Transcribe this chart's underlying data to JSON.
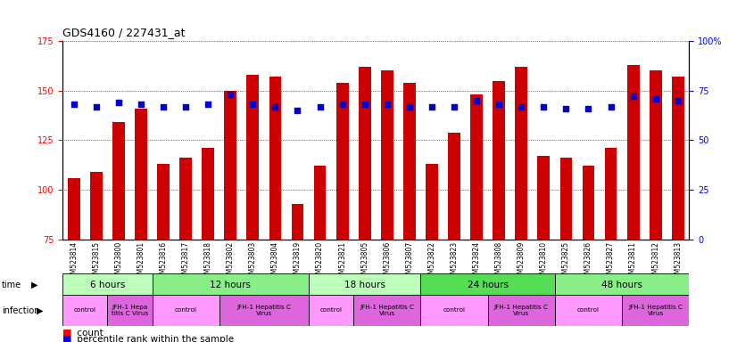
{
  "title": "GDS4160 / 227431_at",
  "samples": [
    "GSM523814",
    "GSM523815",
    "GSM523800",
    "GSM523801",
    "GSM523816",
    "GSM523817",
    "GSM523818",
    "GSM523802",
    "GSM523803",
    "GSM523804",
    "GSM523819",
    "GSM523820",
    "GSM523821",
    "GSM523805",
    "GSM523806",
    "GSM523807",
    "GSM523822",
    "GSM523823",
    "GSM523824",
    "GSM523808",
    "GSM523809",
    "GSM523810",
    "GSM523825",
    "GSM523826",
    "GSM523827",
    "GSM523811",
    "GSM523812",
    "GSM523813"
  ],
  "counts": [
    106,
    109,
    134,
    141,
    113,
    116,
    121,
    150,
    158,
    157,
    93,
    112,
    154,
    162,
    160,
    154,
    113,
    129,
    148,
    155,
    162,
    117,
    116,
    112,
    121,
    163,
    160,
    157
  ],
  "percentiles": [
    68,
    67,
    69,
    68,
    67,
    67,
    68,
    73,
    68,
    67,
    65,
    67,
    68,
    68,
    68,
    67,
    67,
    67,
    70,
    68,
    67,
    67,
    66,
    66,
    67,
    72,
    71,
    70
  ],
  "bar_color": "#cc0000",
  "dot_color": "#0000cc",
  "ylim_left": [
    75,
    175
  ],
  "ylim_right": [
    0,
    100
  ],
  "yticks_left": [
    75,
    100,
    125,
    150,
    175
  ],
  "yticks_right": [
    0,
    25,
    50,
    75,
    100
  ],
  "time_groups": [
    {
      "label": "6 hours",
      "start": 0,
      "end": 4,
      "color": "#bbffbb"
    },
    {
      "label": "12 hours",
      "start": 4,
      "end": 11,
      "color": "#88ee88"
    },
    {
      "label": "18 hours",
      "start": 11,
      "end": 16,
      "color": "#bbffbb"
    },
    {
      "label": "24 hours",
      "start": 16,
      "end": 22,
      "color": "#55dd55"
    },
    {
      "label": "48 hours",
      "start": 22,
      "end": 28,
      "color": "#88ee88"
    }
  ],
  "infection_groups": [
    {
      "label": "control",
      "start": 0,
      "end": 2,
      "color": "#ff99ff"
    },
    {
      "label": "JFH-1 Hepa\ntitis C Virus",
      "start": 2,
      "end": 4,
      "color": "#dd66dd"
    },
    {
      "label": "control",
      "start": 4,
      "end": 7,
      "color": "#ff99ff"
    },
    {
      "label": "JFH-1 Hepatitis C\nVirus",
      "start": 7,
      "end": 11,
      "color": "#dd66dd"
    },
    {
      "label": "control",
      "start": 11,
      "end": 13,
      "color": "#ff99ff"
    },
    {
      "label": "JFH-1 Hepatitis C\nVirus",
      "start": 13,
      "end": 16,
      "color": "#dd66dd"
    },
    {
      "label": "control",
      "start": 16,
      "end": 19,
      "color": "#ff99ff"
    },
    {
      "label": "JFH-1 Hepatitis C\nVirus",
      "start": 19,
      "end": 22,
      "color": "#dd66dd"
    },
    {
      "label": "control",
      "start": 22,
      "end": 25,
      "color": "#ff99ff"
    },
    {
      "label": "JFH-1 Hepatitis C\nVirus",
      "start": 25,
      "end": 28,
      "color": "#dd66dd"
    }
  ],
  "background_color": "#ffffff"
}
